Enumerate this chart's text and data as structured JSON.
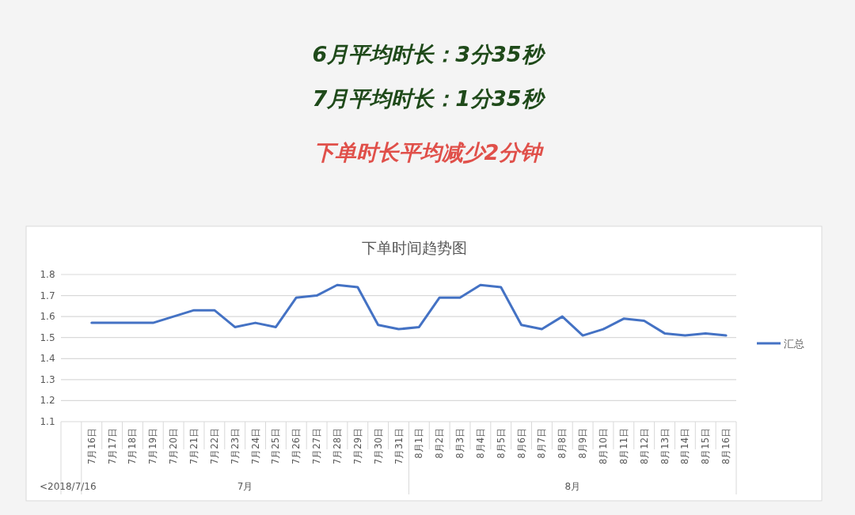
{
  "chart_data": {
    "type": "line",
    "title": "下单时间趋势图",
    "annotations": [
      "6月平均时长：3分35秒",
      "7月平均时长：1分35秒",
      "下单时长平均减少2分钟",
      "<2018/7/16",
      "7月",
      "8月"
    ],
    "categories": [
      null,
      "7月16日",
      "7月17日",
      "7月18日",
      "7月19日",
      "7月20日",
      "7月21日",
      "7月22日",
      "7月23日",
      "7月24日",
      "7月25日",
      "7月26日",
      "7月27日",
      "7月28日",
      "7月29日",
      "7月30日",
      "7月31日",
      "8月1日",
      "8月2日",
      "8月3日",
      "8月4日",
      "8月5日",
      "8月6日",
      "8月7日",
      "8月8日",
      "8月9日",
      "8月10日",
      "8月11日",
      "8月12日",
      "8月13日",
      "8月14日",
      "8月15日",
      "8月16日"
    ],
    "series": [
      {
        "name": "汇总",
        "color": "#4472c4",
        "values": [
          null,
          1.57,
          1.57,
          1.57,
          1.57,
          1.6,
          1.63,
          1.63,
          1.55,
          1.57,
          1.55,
          1.69,
          1.7,
          1.75,
          1.74,
          1.56,
          1.54,
          1.55,
          1.69,
          1.69,
          1.75,
          1.74,
          1.56,
          1.54,
          1.6,
          1.51,
          1.54,
          1.59,
          1.58,
          1.52,
          1.51,
          1.52,
          1.51
        ]
      }
    ],
    "ylim": [
      1.1,
      1.8
    ],
    "yticks": [
      1.1,
      1.2,
      1.3,
      1.4,
      1.5,
      1.6,
      1.7,
      1.8
    ],
    "grid": "y",
    "legend": "right",
    "marker": "none",
    "line_style": "solid"
  }
}
